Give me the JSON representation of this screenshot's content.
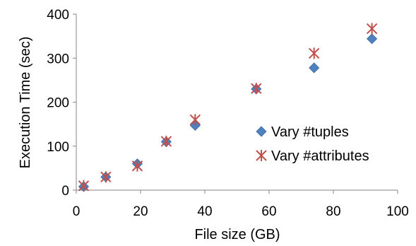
{
  "chart_data": {
    "type": "scatter",
    "title": "",
    "xlabel": "File size (GB)",
    "ylabel": "Execution Time (sec)",
    "xlim": [
      0,
      100
    ],
    "ylim": [
      0,
      400
    ],
    "xticks": [
      0,
      20,
      40,
      60,
      80,
      100
    ],
    "yticks": [
      0,
      100,
      200,
      300,
      400
    ],
    "grid": false,
    "legend_position": "right",
    "series": [
      {
        "name": "Vary #tuples",
        "marker": "diamond",
        "color": "#4f81bd",
        "x": [
          2.3,
          9.2,
          19,
          28,
          37,
          56,
          74,
          92
        ],
        "y": [
          8,
          30,
          60,
          110,
          147,
          230,
          278,
          344
        ]
      },
      {
        "name": "Vary #attributes",
        "marker": "asterisk",
        "color": "#c0504d",
        "x": [
          2.3,
          9.2,
          19,
          28,
          37,
          56,
          74,
          92
        ],
        "y": [
          10,
          30,
          55,
          111,
          160,
          231,
          311,
          367
        ]
      }
    ]
  }
}
